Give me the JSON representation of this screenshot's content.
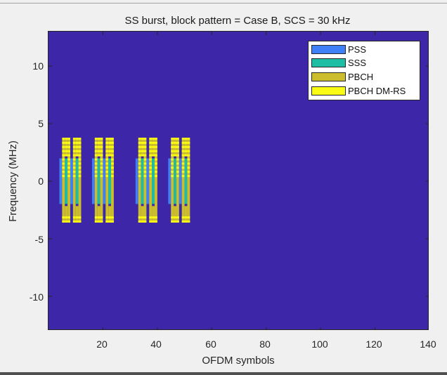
{
  "chart_data": {
    "type": "heatmap",
    "title": "SS burst, block pattern = Case B, SCS = 30 kHz",
    "xlabel": "OFDM symbols",
    "ylabel": "Frequency (MHz)",
    "xlim": [
      0,
      140
    ],
    "ylim": [
      -13,
      13
    ],
    "xticks": [
      20,
      40,
      60,
      80,
      100,
      120,
      140
    ],
    "yticks": [
      10,
      5,
      0,
      -5,
      -10
    ],
    "legend": {
      "position": "northeast",
      "entries": [
        {
          "label": "PSS",
          "color": "#3f7ff7"
        },
        {
          "label": "SSS",
          "color": "#1ebea4"
        },
        {
          "label": "PBCH",
          "color": "#cbbd2d"
        },
        {
          "label": "PBCH DM-RS",
          "color": "#f9fb14"
        }
      ]
    },
    "background_color": "#3e26a8",
    "ssb_start_symbols": [
      4,
      8,
      16,
      20,
      32,
      36,
      44,
      48
    ],
    "ssb_structure": {
      "symbols_per_block": 4,
      "pss": {
        "symbol_offset": 0,
        "freq_range_mhz": [
          -1.98,
          1.98
        ]
      },
      "pbch_1": {
        "symbol_offset": 1,
        "freq_range_mhz": [
          -3.6,
          3.6
        ]
      },
      "sss": {
        "symbol_offset": 2,
        "freq_range_mhz": [
          -1.98,
          1.98
        ]
      },
      "pbch_sss_edges": {
        "symbol_offset": 2,
        "freq_range_mhz": [
          [
            -3.6,
            -2.16
          ],
          [
            2.16,
            3.6
          ]
        ]
      },
      "pbch_2": {
        "symbol_offset": 3,
        "freq_range_mhz": [
          -3.6,
          3.6
        ]
      }
    }
  },
  "title": "SS burst, block pattern = Case B, SCS = 30 kHz",
  "axes": {
    "xlabel": "OFDM symbols",
    "ylabel": "Frequency (MHz)",
    "xticks": [
      "20",
      "40",
      "60",
      "80",
      "100",
      "120",
      "140"
    ],
    "yticks": [
      "10",
      "5",
      "0",
      "-5",
      "-10"
    ]
  },
  "legend": [
    "PSS",
    "SSS",
    "PBCH",
    "PBCH DM-RS"
  ]
}
